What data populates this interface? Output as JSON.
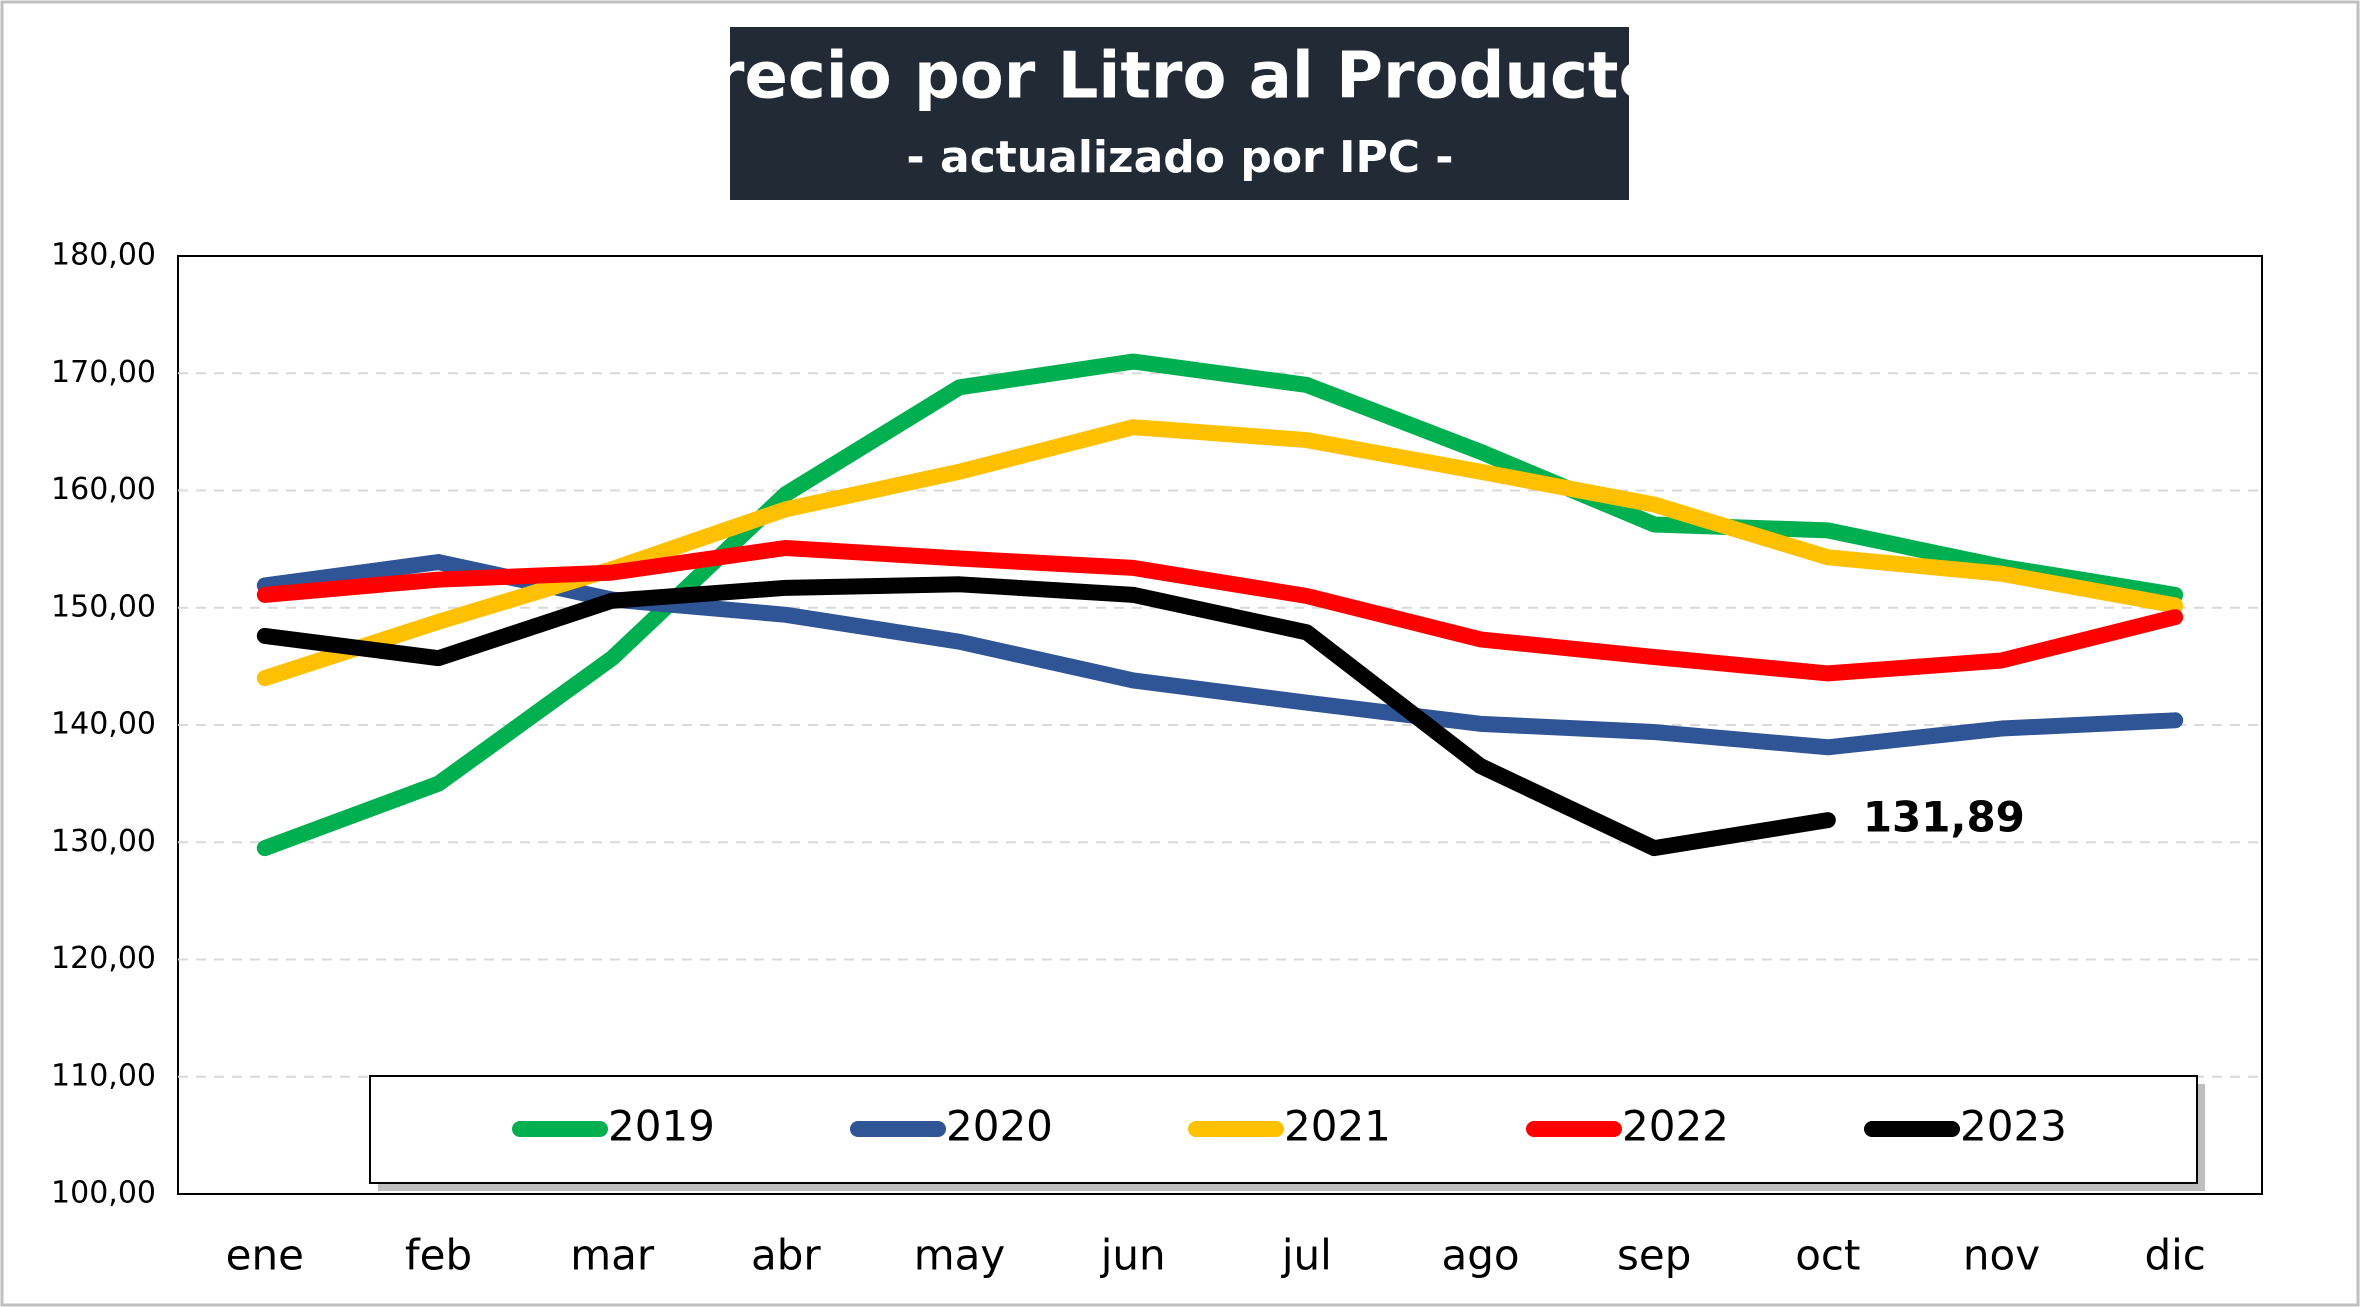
{
  "chart_data": {
    "type": "line",
    "title": "Precio por Litro al Productor",
    "subtitle": "- actualizado por IPC -",
    "categories": [
      "ene",
      "feb",
      "mar",
      "abr",
      "may",
      "jun",
      "jul",
      "ago",
      "sep",
      "oct",
      "nov",
      "dic"
    ],
    "series": [
      {
        "name": "2019",
        "color": "#00b050",
        "values": [
          129.5,
          135,
          145.7,
          159.7,
          168.8,
          171,
          169,
          163.3,
          157.1,
          156.6,
          153.5,
          151.1
        ]
      },
      {
        "name": "2020",
        "color": "#2f5597",
        "values": [
          151.9,
          153.9,
          150.7,
          149.4,
          147.1,
          143.8,
          141.9,
          140.1,
          139.4,
          138.1,
          139.7,
          140.4
        ]
      },
      {
        "name": "2021",
        "color": "#ffc000",
        "values": [
          144,
          148.8,
          153.3,
          158.4,
          161.6,
          165.4,
          164.3,
          161.6,
          158.8,
          154.3,
          152.9,
          150.2
        ]
      },
      {
        "name": "2022",
        "color": "#ff0000",
        "values": [
          151.1,
          152.4,
          153,
          155.1,
          154.2,
          153.4,
          151,
          147.3,
          145.8,
          144.4,
          145.5,
          149.2
        ]
      },
      {
        "name": "2023",
        "color": "#000000",
        "values": [
          147.6,
          145.7,
          150.6,
          151.7,
          152,
          151.1,
          147.9,
          136.5,
          129.5,
          131.89,
          null,
          null
        ],
        "value_labels": [
          null,
          null,
          null,
          null,
          null,
          null,
          null,
          null,
          null,
          "131,89",
          null,
          null
        ]
      }
    ],
    "ylim": [
      100,
      180
    ],
    "yticks": [
      {
        "value": 100,
        "label": "100,00"
      },
      {
        "value": 110,
        "label": "110,00"
      },
      {
        "value": 120,
        "label": "120,00"
      },
      {
        "value": 130,
        "label": "130,00"
      },
      {
        "value": 140,
        "label": "140,00"
      },
      {
        "value": 150,
        "label": "150,00"
      },
      {
        "value": 160,
        "label": "160,00"
      },
      {
        "value": 170,
        "label": "170,00"
      },
      {
        "value": 180,
        "label": "180,00"
      }
    ],
    "grid": true,
    "legend": "bottom"
  }
}
